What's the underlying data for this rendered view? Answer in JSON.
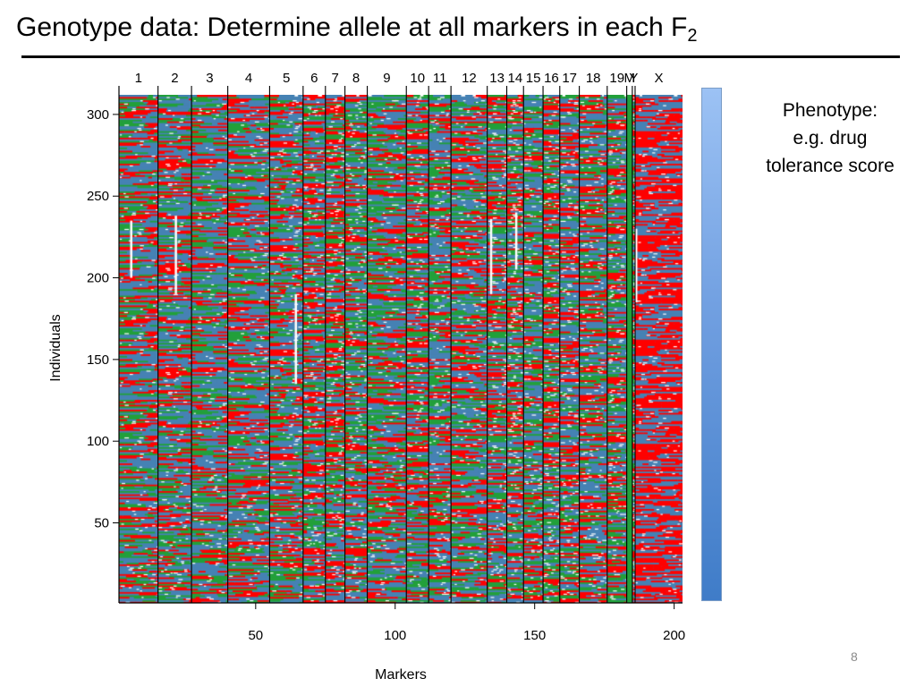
{
  "slide": {
    "title_main": "Genotype data:  Determine allele at all markers in each F",
    "title_subscript": "2",
    "phenotype_line1": "Phenotype:",
    "phenotype_line2": "e.g. drug",
    "phenotype_line3": "tolerance score",
    "page_number": "8"
  },
  "colors": {
    "allele_blue": "#4682b4",
    "allele_red": "#ff0000",
    "allele_green": "#22a03a",
    "missing": "#ffffff",
    "phenotype_top": "#9cc2f4",
    "phenotype_bottom": "#3f7cc8"
  },
  "chart_data": {
    "type": "heatmap",
    "title": "",
    "xlabel": "Markers",
    "ylabel": "Individuals",
    "xlim": [
      1,
      203
    ],
    "ylim": [
      1,
      312
    ],
    "x_ticks": [
      50,
      100,
      150,
      200
    ],
    "y_ticks": [
      50,
      100,
      150,
      200,
      250,
      300
    ],
    "chromosomes": [
      {
        "name": "1",
        "start": 1,
        "end": 15
      },
      {
        "name": "2",
        "start": 15,
        "end": 27
      },
      {
        "name": "3",
        "start": 27,
        "end": 40
      },
      {
        "name": "4",
        "start": 40,
        "end": 55
      },
      {
        "name": "5",
        "start": 55,
        "end": 67
      },
      {
        "name": "6",
        "start": 67,
        "end": 75
      },
      {
        "name": "7",
        "start": 75,
        "end": 82
      },
      {
        "name": "8",
        "start": 82,
        "end": 90
      },
      {
        "name": "9",
        "start": 90,
        "end": 104
      },
      {
        "name": "10",
        "start": 104,
        "end": 112
      },
      {
        "name": "11",
        "start": 112,
        "end": 120
      },
      {
        "name": "12",
        "start": 120,
        "end": 133
      },
      {
        "name": "13",
        "start": 133,
        "end": 140
      },
      {
        "name": "14",
        "start": 140,
        "end": 146
      },
      {
        "name": "15",
        "start": 146,
        "end": 153
      },
      {
        "name": "16",
        "start": 153,
        "end": 159
      },
      {
        "name": "17",
        "start": 159,
        "end": 166
      },
      {
        "name": "18",
        "start": 166,
        "end": 176
      },
      {
        "name": "19",
        "start": 176,
        "end": 183
      },
      {
        "name": "M",
        "start": 183,
        "end": 185
      },
      {
        "name": "Y",
        "start": 185,
        "end": 186
      },
      {
        "name": "X",
        "start": 186,
        "end": 203
      }
    ],
    "legend": "none",
    "grid": false
  }
}
